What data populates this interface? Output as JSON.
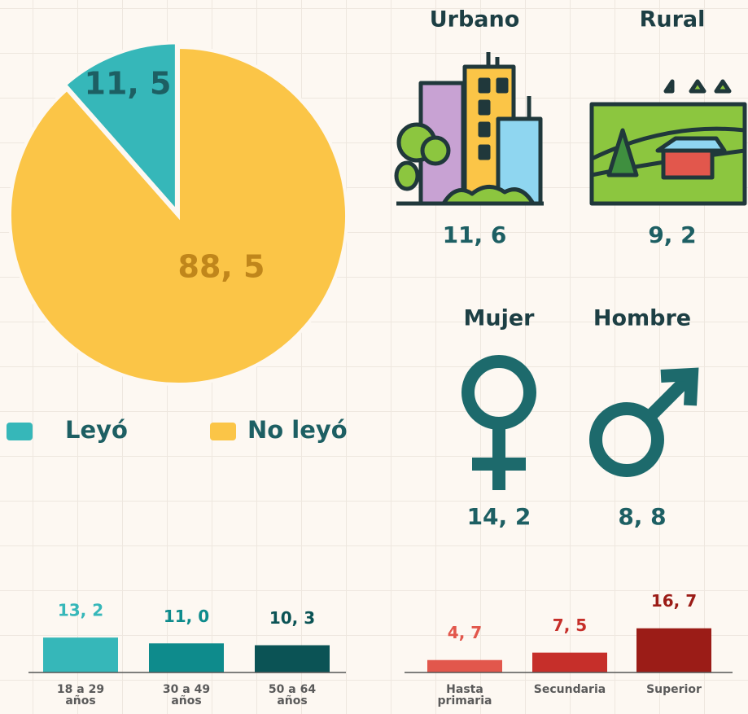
{
  "chart_data": [
    {
      "type": "pie",
      "categories": [
        "Leyó",
        "No leyó"
      ],
      "values": [
        11.5,
        88.5
      ],
      "value_labels": [
        "11, 5",
        "88, 5"
      ],
      "colors": [
        "#36b7b9",
        "#fbc547"
      ],
      "value_label_colors": [
        "#1d5f63",
        "#c0861b"
      ],
      "legend": "bottom"
    },
    {
      "type": "pictogram",
      "categories": [
        "Urbano",
        "Rural"
      ],
      "values": [
        11.6,
        9.2
      ],
      "value_labels": [
        "11, 6",
        "9, 2"
      ],
      "color": "#1d5f63"
    },
    {
      "type": "pictogram",
      "categories": [
        "Mujer",
        "Hombre"
      ],
      "values": [
        14.2,
        8.8
      ],
      "value_labels": [
        "14, 2",
        "8, 8"
      ],
      "color": "#1d5f63"
    },
    {
      "type": "bar",
      "categories": [
        "18 a 29 años",
        "30 a 49 años",
        "50 a 64 años"
      ],
      "values": [
        13.2,
        11.0,
        10.3
      ],
      "value_labels": [
        "13, 2",
        "11, 0",
        "10, 3"
      ],
      "colors": [
        "#36b7b9",
        "#0e8b8c",
        "#0b5355"
      ],
      "value_label_colors": [
        "#36b7b9",
        "#0e8b8c",
        "#0b5355"
      ]
    },
    {
      "type": "bar",
      "categories": [
        "Hasta primaria",
        "Secundaria",
        "Superior"
      ],
      "values": [
        4.7,
        7.5,
        16.7
      ],
      "value_labels": [
        "4, 7",
        "7, 5",
        "16, 7"
      ],
      "colors": [
        "#e2574c",
        "#c62f2a",
        "#9b1c17"
      ],
      "value_label_colors": [
        "#e2574c",
        "#c62f2a",
        "#9b1c17"
      ]
    }
  ]
}
